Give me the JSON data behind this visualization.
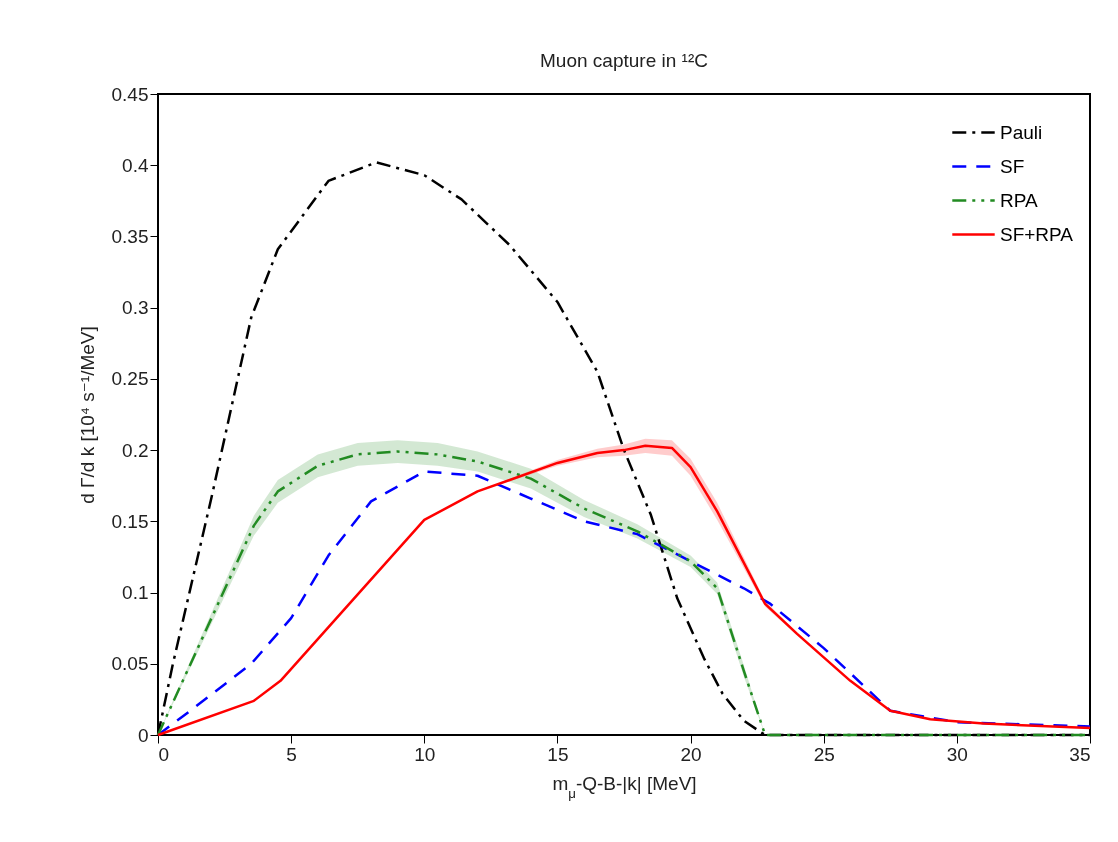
{
  "chart_data": {
    "type": "line",
    "title": "Muon capture in ¹²C",
    "xlabel": "m$_{μ}$-Q-B-|k| [MeV]",
    "ylabel": "d Γ/d k [10⁴ s⁻¹/MeV]",
    "xlim": [
      0,
      35
    ],
    "ylim": [
      0,
      0.45
    ],
    "xticks": [
      0,
      5,
      10,
      15,
      20,
      25,
      30,
      35
    ],
    "yticks": [
      0,
      0.05,
      0.1,
      0.15,
      0.2,
      0.25,
      0.3,
      0.35,
      0.4,
      0.45
    ],
    "grid": false,
    "legend": "top right",
    "marker": "none",
    "series": [
      {
        "name": "Pauli",
        "color": "#000000",
        "line_style": "dashdot",
        "x": [
          0,
          0.56,
          2,
          3.5,
          4.5,
          6.4,
          8.2,
          10,
          11.4,
          13.2,
          15,
          16.5,
          17.5,
          18.5,
          19.5,
          20.5,
          21.2,
          22,
          22.8,
          25,
          30,
          35
        ],
        "values": [
          0,
          0.05,
          0.166,
          0.293,
          0.341,
          0.389,
          0.402,
          0.393,
          0.376,
          0.344,
          0.304,
          0.255,
          0.2,
          0.155,
          0.096,
          0.054,
          0.029,
          0.01,
          0,
          0,
          0,
          0
        ]
      },
      {
        "name": "SF",
        "color": "#0000ff",
        "line_style": "dashed",
        "x": [
          0,
          1.35,
          3.5,
          5,
          6.4,
          8,
          10,
          12,
          14,
          16,
          18,
          20,
          22,
          23,
          25,
          27.5,
          30,
          35
        ],
        "values": [
          0,
          0.019,
          0.05,
          0.082,
          0.126,
          0.164,
          0.185,
          0.182,
          0.166,
          0.15,
          0.141,
          0.122,
          0.103,
          0.092,
          0.061,
          0.017,
          0.009,
          0.006
        ]
      },
      {
        "name": "RPA",
        "color": "#228b22",
        "line_style": "dashdotdot",
        "x": [
          0,
          3.6,
          4.5,
          6,
          7.5,
          9,
          10.5,
          12,
          14,
          16,
          18,
          20,
          21,
          22,
          22.8,
          25,
          30,
          35
        ],
        "values": [
          0,
          0.147,
          0.171,
          0.189,
          0.197,
          0.199,
          0.197,
          0.192,
          0.18,
          0.159,
          0.143,
          0.122,
          0.103,
          0.045,
          0,
          0,
          0,
          0
        ],
        "lower": [
          0,
          0.14,
          0.163,
          0.181,
          0.189,
          0.191,
          0.189,
          0.185,
          0.173,
          0.153,
          0.138,
          0.118,
          0.099,
          0.041,
          0,
          0,
          0,
          0
        ],
        "upper": [
          0,
          0.154,
          0.179,
          0.197,
          0.205,
          0.207,
          0.205,
          0.199,
          0.187,
          0.165,
          0.148,
          0.126,
          0.107,
          0.049,
          0,
          0,
          0,
          0
        ]
      },
      {
        "name": "SF+RPA",
        "color": "#ff0000",
        "line_style": "solid",
        "x": [
          0,
          3.6,
          4.6,
          10,
          12,
          15,
          16.5,
          17.5,
          18.3,
          19.3,
          20,
          21,
          22.8,
          24,
          26,
          27.5,
          29,
          31,
          35
        ],
        "values": [
          0,
          0.024,
          0.038,
          0.151,
          0.171,
          0.191,
          0.198,
          0.2,
          0.203,
          0.2015,
          0.188,
          0.157,
          0.092,
          0.071,
          0.038,
          0.017,
          0.011,
          0.008,
          0.005
        ],
        "lower": [
          0,
          0.024,
          0.038,
          0.151,
          0.171,
          0.189,
          0.195,
          0.196,
          0.198,
          0.196,
          0.182,
          0.151,
          0.09,
          0.07,
          0.038,
          0.017,
          0.011,
          0.008,
          0.005
        ],
        "upper": [
          0,
          0.024,
          0.038,
          0.151,
          0.171,
          0.193,
          0.201,
          0.204,
          0.208,
          0.207,
          0.194,
          0.163,
          0.094,
          0.072,
          0.038,
          0.017,
          0.011,
          0.008,
          0.005
        ]
      }
    ]
  }
}
